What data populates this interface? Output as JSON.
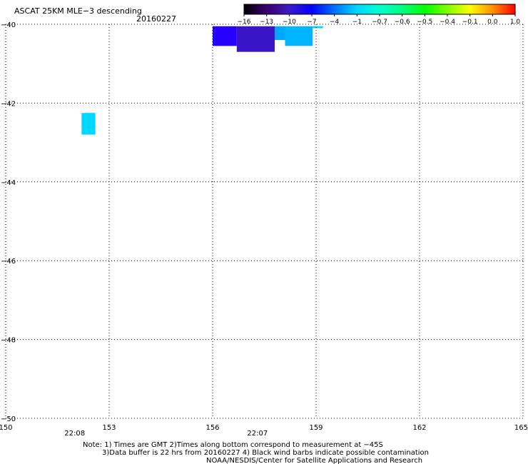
{
  "header": {
    "title": "ASCAT 25KM MLE−3 descending",
    "date": "20160227"
  },
  "colorbar": {
    "labels": [
      "−16",
      "−13",
      "−10",
      "−7",
      "−4",
      "−1",
      "−0.7",
      "−0.6",
      "−0.5",
      "−0.4",
      "−0.1",
      "0.0",
      "1.0"
    ],
    "colors": [
      "#000000",
      "#3a006a",
      "#3b1cc8",
      "#0000ff",
      "#0070ff",
      "#00d8ff",
      "#00ffd0",
      "#00ff80",
      "#00ff00",
      "#80ff00",
      "#ffff00",
      "#ff9000",
      "#ff0000"
    ]
  },
  "chart_data": {
    "type": "heatmap",
    "title": "ASCAT 25KM MLE−3 descending",
    "xlim": [
      150,
      165
    ],
    "ylim": [
      -50,
      -40
    ],
    "xticks": [
      150,
      153,
      156,
      159,
      162,
      165
    ],
    "yticks": [
      -40,
      -42,
      -44,
      -46,
      -48,
      -50
    ],
    "grid": true,
    "cells": [
      {
        "lon0": 152.2,
        "lon1": 152.6,
        "lat0": -42.8,
        "lat1": -42.25,
        "value": -4,
        "color": "#00d8ff"
      },
      {
        "lon0": 156.0,
        "lon1": 156.7,
        "lat0": -40.55,
        "lat1": -40.05,
        "value": -10,
        "color": "#2600ff"
      },
      {
        "lon0": 156.7,
        "lon1": 157.8,
        "lat0": -40.7,
        "lat1": -40.05,
        "value": -12,
        "color": "#3a15c8"
      },
      {
        "lon0": 157.8,
        "lon1": 158.1,
        "lat0": -40.4,
        "lat1": -40.05,
        "value": -7,
        "color": "#00a8ff"
      },
      {
        "lon0": 158.1,
        "lon1": 158.9,
        "lat0": -40.55,
        "lat1": -40.05,
        "value": -7,
        "color": "#00b4ff"
      },
      {
        "lon0": 158.9,
        "lon1": 159.2,
        "lat0": -40.1,
        "lat1": -40.05,
        "value": -4,
        "color": "#00d8ff"
      }
    ],
    "time_labels": [
      {
        "lon": 152,
        "text": "22:08"
      },
      {
        "lon": 157.3,
        "text": "22:07"
      }
    ]
  },
  "notes": {
    "line1": "Note: 1) Times are GMT 2)Times along bottom correspond to measurement at −45S",
    "line2": "3)Data buffer is 22 hrs from 20160227 4) Black wind barbs indicate possible contamination",
    "line3": "NOAA/NESDIS/Center for Satellite Applications and Research"
  },
  "colors": {
    "time_label": "#cc2200",
    "grid": "#000000"
  }
}
